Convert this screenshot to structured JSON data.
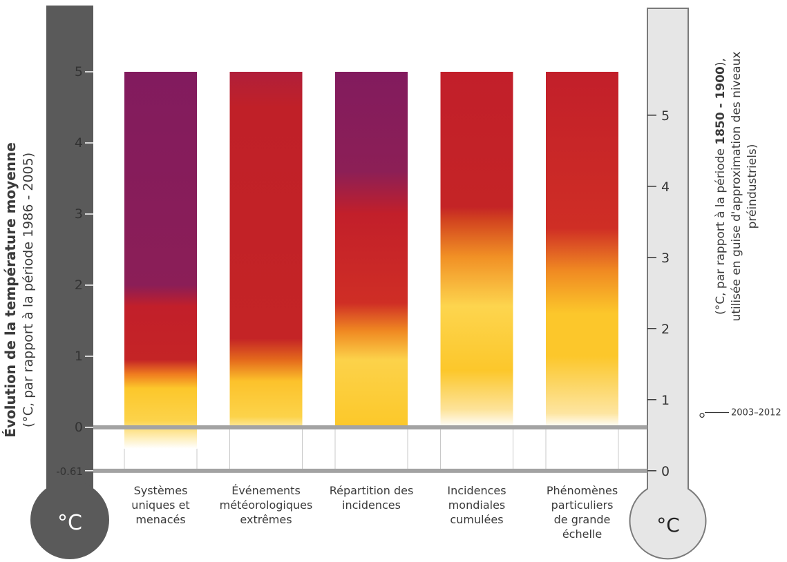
{
  "chart_data": {
    "type": "bar",
    "categories": [
      {
        "lines": [
          "Systèmes",
          "uniques et",
          "menacés"
        ]
      },
      {
        "lines": [
          "Événements",
          "météorologiques",
          "extrêmes"
        ]
      },
      {
        "lines": [
          "Répartition des",
          "incidences"
        ]
      },
      {
        "lines": [
          "Incidences",
          "mondiales",
          "cumulées"
        ]
      },
      {
        "lines": [
          "Phénomènes",
          "particuliers",
          "de grande",
          "échelle"
        ]
      }
    ],
    "bar_top": 5,
    "bar_gradients": [
      {
        "bottom": -0.3,
        "stops": [
          {
            "t": -0.3,
            "color": "#ffffff"
          },
          {
            "t": 0.1,
            "color": "#fcd34a"
          },
          {
            "t": 0.55,
            "color": "#fcc72b"
          },
          {
            "t": 0.75,
            "color": "#ef7b1f"
          },
          {
            "t": 0.95,
            "color": "#c42426"
          },
          {
            "t": 1.7,
            "color": "#c21f2a"
          },
          {
            "t": 2.0,
            "color": "#8b1e57"
          },
          {
            "t": 5,
            "color": "#821b5e"
          }
        ]
      },
      {
        "bottom": 0,
        "stops": [
          {
            "t": 0,
            "color": "#fde9a0"
          },
          {
            "t": 0.15,
            "color": "#fcd34a"
          },
          {
            "t": 0.65,
            "color": "#fcc22b"
          },
          {
            "t": 0.95,
            "color": "#e4691c"
          },
          {
            "t": 1.25,
            "color": "#c42426"
          },
          {
            "t": 4.5,
            "color": "#c02028"
          },
          {
            "t": 5,
            "color": "#b01f3a"
          }
        ]
      },
      {
        "bottom": 0,
        "stops": [
          {
            "t": 0,
            "color": "#fcc829"
          },
          {
            "t": 0.95,
            "color": "#fcd24a"
          },
          {
            "t": 1.35,
            "color": "#f08a22"
          },
          {
            "t": 1.75,
            "color": "#cf2e25"
          },
          {
            "t": 3.0,
            "color": "#c21f2a"
          },
          {
            "t": 3.6,
            "color": "#8c1f56"
          },
          {
            "t": 5,
            "color": "#821b5e"
          }
        ]
      },
      {
        "bottom": 0,
        "stops": [
          {
            "t": 0,
            "color": "#ffffff"
          },
          {
            "t": 0.25,
            "color": "#fde39a"
          },
          {
            "t": 0.8,
            "color": "#fcc72b"
          },
          {
            "t": 1.7,
            "color": "#fdd54e"
          },
          {
            "t": 2.4,
            "color": "#f19025"
          },
          {
            "t": 2.9,
            "color": "#d3461f"
          },
          {
            "t": 3.1,
            "color": "#c42426"
          },
          {
            "t": 5,
            "color": "#c21f2a"
          }
        ]
      },
      {
        "bottom": 0,
        "stops": [
          {
            "t": 0,
            "color": "#ffffff"
          },
          {
            "t": 0.2,
            "color": "#fde5a0"
          },
          {
            "t": 1.0,
            "color": "#fcc72b"
          },
          {
            "t": 1.6,
            "color": "#fcc72b"
          },
          {
            "t": 2.2,
            "color": "#f08a22"
          },
          {
            "t": 2.8,
            "color": "#cf2e25"
          },
          {
            "t": 5,
            "color": "#c21f2a"
          }
        ]
      }
    ],
    "left_axis": {
      "ticks": [
        {
          "value": -0.61,
          "label": "-0.61"
        },
        {
          "value": 0,
          "label": "0"
        },
        {
          "value": 1,
          "label": "1"
        },
        {
          "value": 2,
          "label": "2"
        },
        {
          "value": 3,
          "label": "3"
        },
        {
          "value": 4,
          "label": "4"
        },
        {
          "value": 5,
          "label": "5"
        }
      ],
      "title_line1": "Évolution de la température moyenne",
      "title_line2": "(°C, par rapport à la période 1986 - 2005)",
      "bulb_label": "°C"
    },
    "right_axis": {
      "offset": 0.61,
      "ticks": [
        {
          "value": 0,
          "label": "0"
        },
        {
          "value": 1,
          "label": "1"
        },
        {
          "value": 2,
          "label": "2"
        },
        {
          "value": 3,
          "label": "3"
        },
        {
          "value": 4,
          "label": "4"
        },
        {
          "value": 5,
          "label": "5"
        }
      ],
      "title_line1_part1": "(°C, par rapport à la période ",
      "title_line1_bold": "1850 - 1900",
      "title_line1_part2": "),",
      "title_line2": "utilisée en guise d'approximation des niveaux",
      "title_line3": "préindustriels)",
      "bulb_label": "°C"
    },
    "annotation": {
      "label": "2003–2012",
      "value": 0.78
    },
    "colors": {
      "left_thermometer": "#5a5a5a",
      "right_thermometer": "#e6e6e6",
      "right_thermometer_border": "#7a7a7a",
      "reference_line": "#a3a3a3"
    }
  }
}
